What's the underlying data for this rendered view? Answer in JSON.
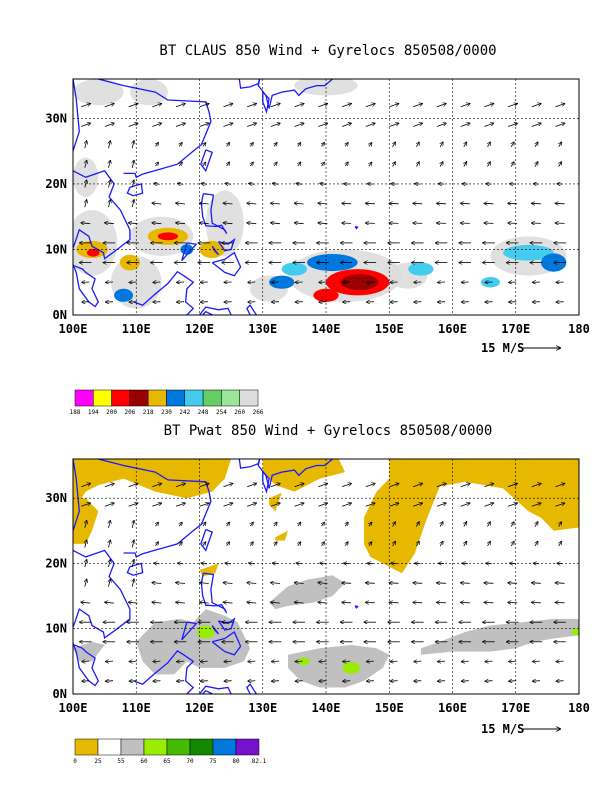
{
  "chart_data": [
    {
      "type": "map",
      "title": "BT CLAUS 850 Wind + Gyrelocs 850508/0000",
      "x_ticks": [
        "100E",
        "110E",
        "120E",
        "130E",
        "140E",
        "150E",
        "160E",
        "170E",
        "180"
      ],
      "y_ticks": [
        "0N",
        "10N",
        "20N",
        "30N"
      ],
      "xlim": [
        100,
        180
      ],
      "ylim": [
        0,
        36
      ],
      "grid": true,
      "reference_vector": "15 M/S",
      "colorbar": {
        "levels": [
          "188",
          "194",
          "200",
          "206",
          "218",
          "230",
          "242",
          "248",
          "254",
          "260",
          "266"
        ],
        "colors": [
          "#ff00ff",
          "#ffff00",
          "#ff0000",
          "#990000",
          "#e6b800",
          "#0077dd",
          "#44ccee",
          "#66cc66",
          "#99e699",
          "#dddddd"
        ]
      },
      "features": [
        {
          "kind": "cold-cloud",
          "lon": 145,
          "lat": 5
        },
        {
          "kind": "cold-cloud",
          "lon": 141,
          "lat": 8
        },
        {
          "kind": "cold-cloud",
          "lon": 115,
          "lat": 12
        },
        {
          "kind": "cold-cloud",
          "lon": 103,
          "lat": 10
        },
        {
          "kind": "cold-cloud",
          "lon": 172,
          "lat": 9
        }
      ]
    },
    {
      "type": "map",
      "title": "BT Pwat 850 Wind + Gyrelocs 850508/0000",
      "x_ticks": [
        "100E",
        "110E",
        "120E",
        "130E",
        "140E",
        "150E",
        "160E",
        "170E",
        "180"
      ],
      "y_ticks": [
        "0N",
        "10N",
        "20N",
        "30N"
      ],
      "xlim": [
        100,
        180
      ],
      "ylim": [
        0,
        36
      ],
      "grid": true,
      "reference_vector": "15 M/S",
      "colorbar": {
        "levels": [
          "0",
          "25",
          "55",
          "60",
          "65",
          "70",
          "75",
          "80",
          "82.1"
        ],
        "colors": [
          "#e6b800",
          "#ffffff",
          "#c0c0c0",
          "#99ee00",
          "#44bb00",
          "#118800",
          "#0077dd",
          "#7711cc"
        ]
      }
    }
  ]
}
